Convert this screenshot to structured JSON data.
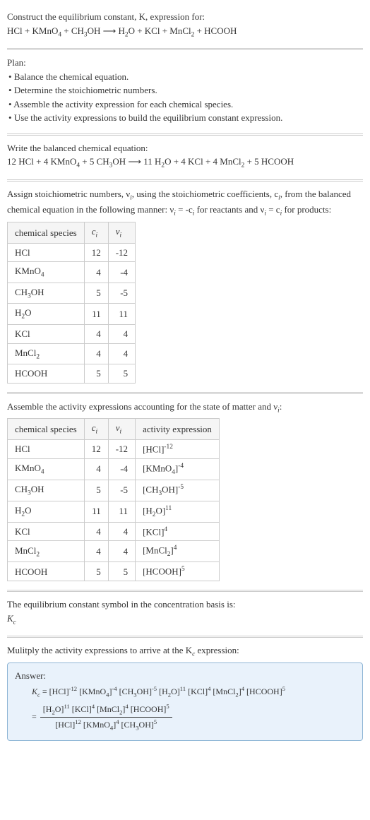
{
  "header": {
    "construct": "Construct the equilibrium constant, K, expression for:",
    "equation_left": "HCl + KMnO",
    "equation_mid1": " + CH",
    "equation_mid2": "OH ⟶ H",
    "equation_mid3": "O + KCl + MnCl",
    "equation_end": " + HCOOH"
  },
  "plan": {
    "title": "Plan:",
    "items": [
      "Balance the chemical equation.",
      "Determine the stoichiometric numbers.",
      "Assemble the activity expression for each chemical species.",
      "Use the activity expressions to build the equilibrium constant expression."
    ]
  },
  "balanced": {
    "title": "Write the balanced chemical equation:",
    "pre": "12 HCl + 4 KMnO",
    "m1": " + 5 CH",
    "m2": "OH ⟶ 11 H",
    "m3": "O + 4 KCl + 4 MnCl",
    "end": " + 5 HCOOH"
  },
  "assign": {
    "text1": "Assign stoichiometric numbers, ν",
    "text2": ", using the stoichiometric coefficients, c",
    "text3": ", from the balanced chemical equation in the following manner: ν",
    "text4": " = -c",
    "text5": " for reactants and ν",
    "text6": " = c",
    "text7": " for products:"
  },
  "table1": {
    "headers": [
      "chemical species",
      "c_i",
      "ν_i"
    ],
    "rows": [
      {
        "sp": "HCl",
        "sub": "",
        "c": "12",
        "v": "-12"
      },
      {
        "sp": "KMnO",
        "sub": "4",
        "c": "4",
        "v": "-4"
      },
      {
        "sp": "CH",
        "sub": "3",
        "sp2": "OH",
        "c": "5",
        "v": "-5"
      },
      {
        "sp": "H",
        "sub": "2",
        "sp2": "O",
        "c": "11",
        "v": "11"
      },
      {
        "sp": "KCl",
        "sub": "",
        "c": "4",
        "v": "4"
      },
      {
        "sp": "MnCl",
        "sub": "2",
        "c": "4",
        "v": "4"
      },
      {
        "sp": "HCOOH",
        "sub": "",
        "c": "5",
        "v": "5"
      }
    ]
  },
  "assemble_text": "Assemble the activity expressions accounting for the state of matter and ν",
  "assemble_colon": ":",
  "table2": {
    "headers": [
      "chemical species",
      "c_i",
      "ν_i",
      "activity expression"
    ],
    "rows": [
      {
        "sp": "HCl",
        "sub": "",
        "c": "12",
        "v": "-12",
        "base": "[HCl]",
        "exp": "-12"
      },
      {
        "sp": "KMnO",
        "sub": "4",
        "c": "4",
        "v": "-4",
        "base": "[KMnO",
        "bsub": "4",
        "bclose": "]",
        "exp": "-4"
      },
      {
        "sp": "CH",
        "sub": "3",
        "sp2": "OH",
        "c": "5",
        "v": "-5",
        "base": "[CH",
        "bsub": "3",
        "bclose": "OH]",
        "exp": "-5"
      },
      {
        "sp": "H",
        "sub": "2",
        "sp2": "O",
        "c": "11",
        "v": "11",
        "base": "[H",
        "bsub": "2",
        "bclose": "O]",
        "exp": "11"
      },
      {
        "sp": "KCl",
        "sub": "",
        "c": "4",
        "v": "4",
        "base": "[KCl]",
        "exp": "4"
      },
      {
        "sp": "MnCl",
        "sub": "2",
        "c": "4",
        "v": "4",
        "base": "[MnCl",
        "bsub": "2",
        "bclose": "]",
        "exp": "4"
      },
      {
        "sp": "HCOOH",
        "sub": "",
        "c": "5",
        "v": "5",
        "base": "[HCOOH]",
        "exp": "5"
      }
    ]
  },
  "eqsymbol": {
    "text": "The equilibrium constant symbol in the concentration basis is:",
    "sym": "K",
    "subc": "c"
  },
  "multiply": {
    "text1": "Mulitply the activity expressions to arrive at the K",
    "text2": " expression:"
  },
  "answer": {
    "label": "Answer:",
    "kc": "K",
    "c": "c",
    "eq": " = [HCl]",
    "e1": "-12",
    "t2": " [KMnO",
    "s4a": "4",
    "t3": "]",
    "e2": "-4",
    "t4": " [CH",
    "s3a": "3",
    "t5": "OH]",
    "e3": "-5",
    "t6": " [H",
    "s2a": "2",
    "t7": "O]",
    "e4": "11",
    "t8": " [KCl]",
    "e5": "4",
    "t9": " [MnCl",
    "s2b": "2",
    "t10": "]",
    "e6": "4",
    "t11": " [HCOOH]",
    "e7": "5",
    "eq2": "= ",
    "num_a": "[H",
    "num_b": "O]",
    "num_e1": "11",
    "num_c": " [KCl]",
    "num_e2": "4",
    "num_d": " [MnCl",
    "num_e": "]",
    "num_e3": "4",
    "num_f": " [HCOOH]",
    "num_e4": "5",
    "den_a": "[HCl]",
    "den_e1": "12",
    "den_b": " [KMnO",
    "den_c": "]",
    "den_e2": "4",
    "den_d": " [CH",
    "den_e": "OH]",
    "den_e3": "5",
    "s2": "2",
    "s3": "3",
    "s4": "4"
  }
}
